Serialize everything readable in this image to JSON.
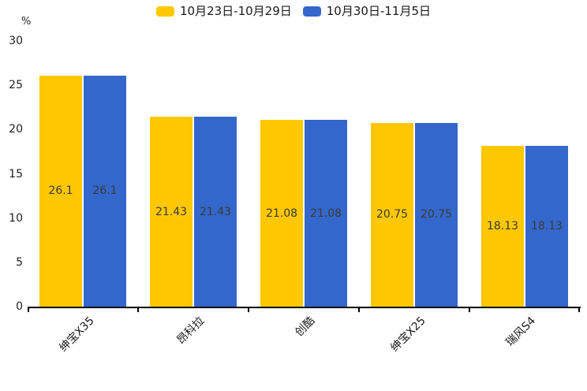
{
  "chart_data": {
    "type": "bar",
    "title": "",
    "categories": [
      "绅宝X35",
      "昂科拉",
      "创酷",
      "绅宝X25",
      "瑞风S4"
    ],
    "series": [
      {
        "name": "10月23日-10月29日",
        "color": "#FDC802",
        "values": [
          26.1,
          21.43,
          21.08,
          20.75,
          18.13
        ]
      },
      {
        "name": "10月30日-11月5日",
        "color": "#3467CB",
        "values": [
          26.1,
          21.43,
          21.08,
          20.75,
          18.13
        ]
      }
    ],
    "xlabel": "",
    "ylabel": "%",
    "ylim": [
      0,
      30
    ],
    "ytick_step": 5,
    "ytick_labels": [
      "0",
      "5",
      "10",
      "15",
      "20",
      "25",
      "30"
    ],
    "grid": false,
    "legend_position": "top-center",
    "value_labels": true,
    "value_label_color": "#3a3a3a",
    "axis_color": "#000000"
  }
}
